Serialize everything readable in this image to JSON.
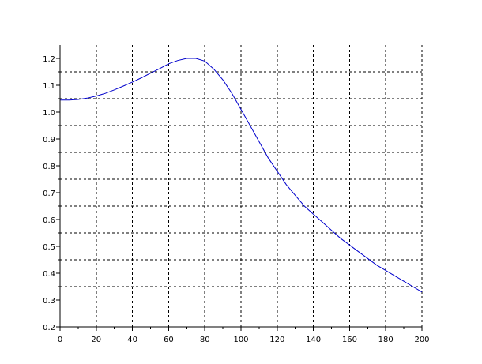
{
  "chart_data": {
    "type": "line",
    "title": "",
    "xlabel": "",
    "ylabel": "",
    "xlim": [
      0,
      200
    ],
    "ylim": [
      0.2,
      1.25
    ],
    "x_ticks": [
      0,
      20,
      40,
      60,
      80,
      100,
      120,
      140,
      160,
      180,
      200
    ],
    "x_tick_labels": [
      "0",
      "20",
      "40",
      "60",
      "80",
      "100",
      "120",
      "140",
      "160",
      "180",
      "200"
    ],
    "y_ticks": [
      0.2,
      0.3,
      0.4,
      0.5,
      0.6,
      0.7,
      0.8,
      0.9,
      1.0,
      1.1,
      1.2
    ],
    "y_tick_labels": [
      "0.2",
      "0.3",
      "0.4",
      "0.5",
      "0.6",
      "0.7",
      "0.8",
      "0.9",
      "1.0",
      "1.1",
      "1.2"
    ],
    "grid_y": [
      0.35,
      0.45,
      0.55,
      0.65,
      0.75,
      0.85,
      0.95,
      1.05,
      1.15
    ],
    "grid": true,
    "series": [
      {
        "color": "#0000cc",
        "x": [
          0,
          5,
          10,
          15,
          20,
          25,
          30,
          35,
          40,
          45,
          50,
          55,
          60,
          65,
          70,
          75,
          80,
          85,
          90,
          95,
          100,
          105,
          110,
          115,
          120,
          125,
          130,
          135,
          140,
          145,
          150,
          155,
          160,
          165,
          170,
          175,
          180,
          185,
          190,
          195,
          200
        ],
        "y": [
          1.045,
          1.045,
          1.047,
          1.052,
          1.06,
          1.07,
          1.083,
          1.097,
          1.112,
          1.128,
          1.145,
          1.162,
          1.18,
          1.192,
          1.2,
          1.2,
          1.19,
          1.16,
          1.12,
          1.07,
          1.01,
          0.95,
          0.89,
          0.83,
          0.78,
          0.73,
          0.69,
          0.65,
          0.62,
          0.59,
          0.56,
          0.53,
          0.505,
          0.48,
          0.455,
          0.43,
          0.41,
          0.39,
          0.37,
          0.35,
          0.33
        ]
      }
    ]
  }
}
